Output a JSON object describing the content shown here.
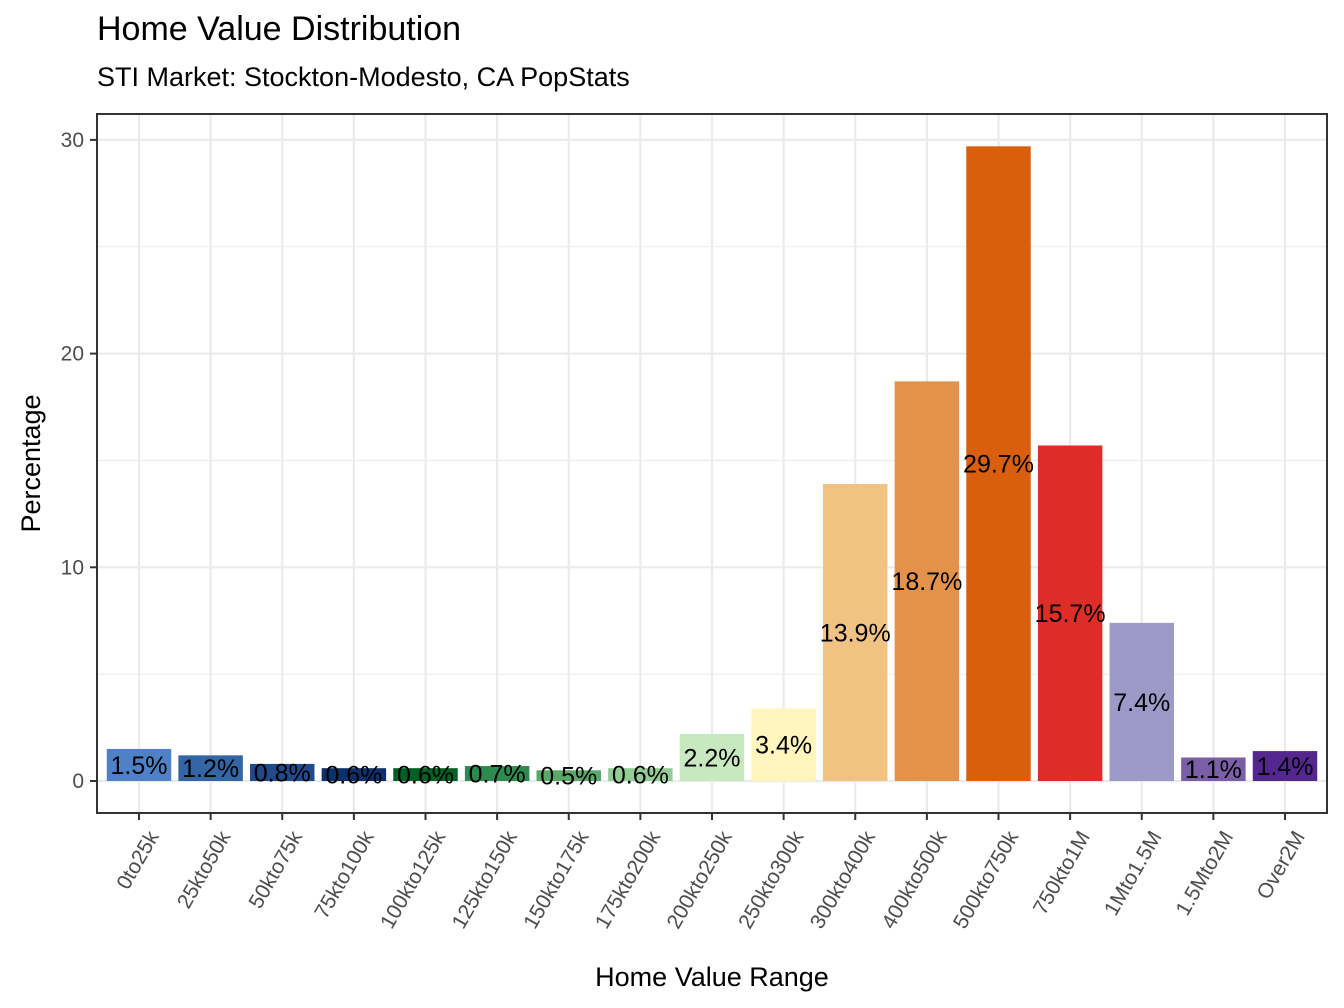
{
  "chart_data": {
    "type": "bar",
    "title": "Home Value Distribution",
    "subtitle": "STI Market: Stockton-Modesto, CA PopStats",
    "xlabel": "Home Value Range",
    "ylabel": "Percentage",
    "ylim": [
      -1.5,
      31.2
    ],
    "yticks": [
      0,
      10,
      20,
      30
    ],
    "grid": true,
    "legend": "none",
    "categories": [
      "0to25k",
      "25kto50k",
      "50kto75k",
      "75kto100k",
      "100kto125k",
      "125kto150k",
      "150kto175k",
      "175kto200k",
      "200kto250k",
      "250kto300k",
      "300kto400k",
      "400kto500k",
      "500kto750k",
      "750kto1M",
      "1Mto1.5M",
      "1.5Mto2M",
      "Over2M"
    ],
    "values": [
      1.5,
      1.2,
      0.8,
      0.6,
      0.6,
      0.7,
      0.5,
      0.6,
      2.2,
      3.4,
      13.9,
      18.7,
      29.7,
      15.7,
      7.4,
      1.1,
      1.4
    ],
    "labels": [
      "1.5%",
      "1.2%",
      "0.8%",
      "0.6%",
      "0.6%",
      "0.7%",
      "0.5%",
      "0.6%",
      "2.2%",
      "3.4%",
      "13.9%",
      "18.7%",
      "29.7%",
      "15.7%",
      "7.4%",
      "1.1%",
      "1.4%"
    ],
    "colors": [
      "#4f81c7",
      "#3465a4",
      "#22498a",
      "#0d2f6b",
      "#006024",
      "#2e8a4e",
      "#5aa76a",
      "#94cc97",
      "#c8e8c0",
      "#fff5bd",
      "#f0c383",
      "#e4914a",
      "#d95f0e",
      "#de2d26",
      "#9e9ac8",
      "#7b5ea8",
      "#54278f"
    ],
    "label_position": "center"
  }
}
